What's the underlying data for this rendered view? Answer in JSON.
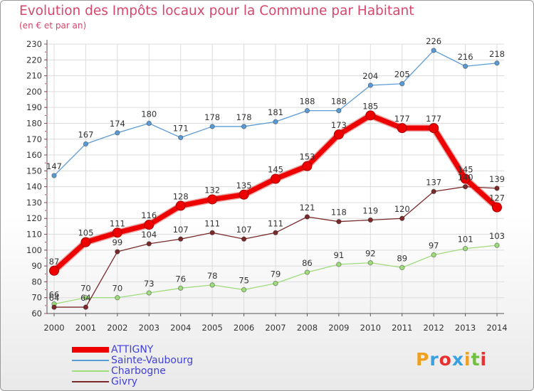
{
  "header": {
    "title": "Evolution des Impôts locaux pour la Commune par Habitant",
    "subtitle": "(en € et par an)"
  },
  "logo": {
    "text": "Proxiti",
    "letters": [
      "P",
      "r",
      "o",
      "x",
      "i",
      "t",
      "i"
    ],
    "colors": [
      "#f0a020",
      "#3aa0e0",
      "#e83030",
      "#3aa0e0",
      "#f0a020",
      "#70c040",
      "#e83030"
    ]
  },
  "chart_data": {
    "type": "line",
    "title": "Evolution des Impôts locaux pour la Commune par Habitant",
    "subtitle": "(en € et par an)",
    "xlabel": "",
    "ylabel": "",
    "x": [
      2000,
      2001,
      2002,
      2003,
      2004,
      2005,
      2006,
      2007,
      2008,
      2009,
      2010,
      2011,
      2012,
      2013,
      2014
    ],
    "ylim": [
      60,
      230
    ],
    "yticks": [
      60,
      70,
      80,
      90,
      100,
      110,
      120,
      130,
      140,
      150,
      160,
      170,
      180,
      190,
      200,
      210,
      220,
      230
    ],
    "grid": true,
    "legend_position": "bottom-left",
    "series": [
      {
        "name": "ATTIGNY",
        "color": "#ee0000",
        "values": [
          87,
          105,
          111,
          116,
          128,
          132,
          135,
          145,
          153,
          173,
          185,
          177,
          177,
          145,
          127
        ]
      },
      {
        "name": "Sainte-Vaubourg",
        "color": "#5b9bd5",
        "values": [
          147,
          167,
          174,
          180,
          171,
          178,
          178,
          181,
          188,
          188,
          204,
          205,
          226,
          216,
          218
        ]
      },
      {
        "name": "Charbogne",
        "color": "#9fdc7c",
        "values": [
          66,
          70,
          70,
          73,
          76,
          78,
          75,
          79,
          86,
          91,
          92,
          89,
          97,
          101,
          103
        ]
      },
      {
        "name": "Givry",
        "color": "#7a2a2a",
        "values": [
          64,
          64,
          99,
          104,
          107,
          111,
          107,
          111,
          121,
          118,
          119,
          120,
          137,
          140,
          139
        ]
      }
    ]
  }
}
